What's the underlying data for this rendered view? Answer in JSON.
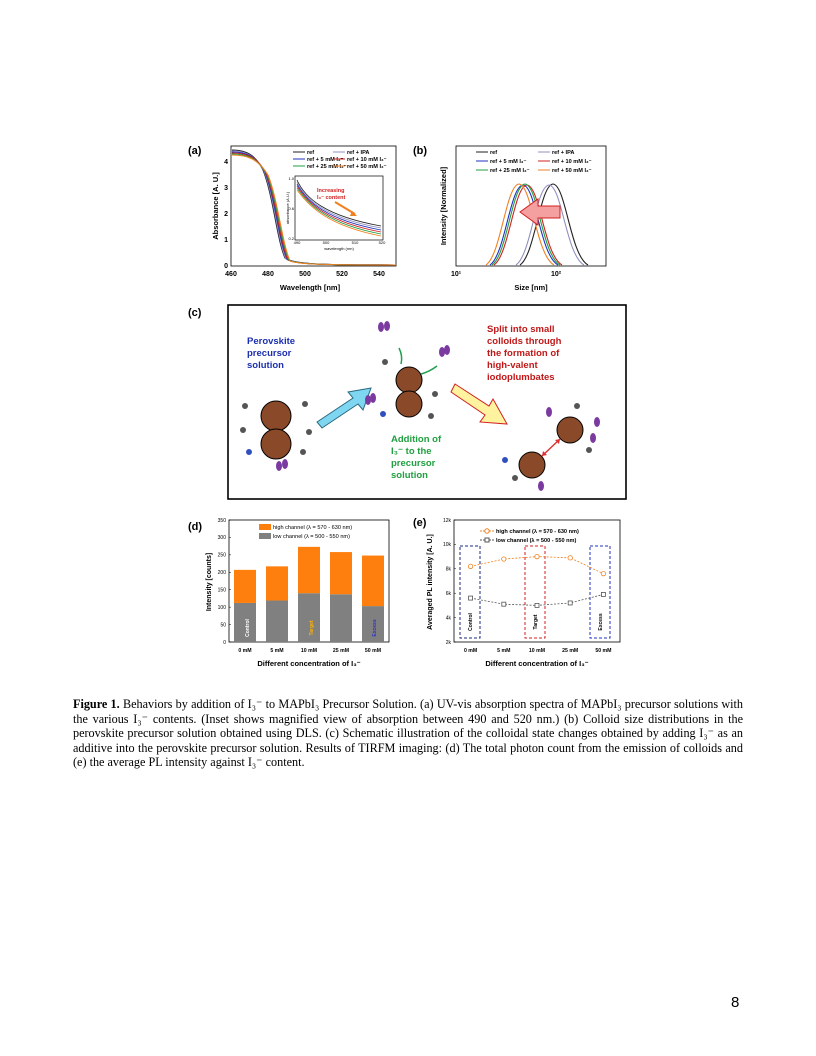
{
  "page_number": "8",
  "panel_a": {
    "label": "(a)",
    "xlabel": "Wavelength [nm]",
    "ylabel": "Absorbance [A. U.]",
    "xticks": [
      "460",
      "480",
      "500",
      "520",
      "540"
    ],
    "yticks": [
      "0",
      "1",
      "2",
      "3",
      "4"
    ],
    "legend": [
      "ref",
      "ref + IPA",
      "ref + 5 mM I₃⁻",
      "ref + 10 mM I₃⁻",
      "ref + 25 mM I₃⁻",
      "ref + 50 mM I₃⁻"
    ],
    "inset": {
      "annotation_line1": "Increasing",
      "annotation_line2": "I₃⁻ content",
      "xlabel": "wavelength (nm)",
      "ylabel": "absorbance (A.U.)",
      "xticks": [
        "490",
        "500",
        "510",
        "520"
      ],
      "yticks": [
        "0.6",
        "1.0",
        "0.2"
      ]
    }
  },
  "panel_b": {
    "label": "(b)",
    "xlabel": "Size [nm]",
    "ylabel": "Intensity [Normalized]",
    "xticks": [
      "10¹",
      "10²"
    ],
    "legend": [
      "ref",
      "ref + IPA",
      "ref + 5 mM I₃⁻",
      "ref + 10 mM I₃⁻",
      "ref + 25 mM I₃⁻",
      "ref + 50 mM I₃⁻"
    ]
  },
  "panel_c": {
    "label": "(c)",
    "text_precursor": [
      "Perovskite",
      "precursor",
      "solution"
    ],
    "text_addition": [
      "Addition of",
      "I₃⁻ to the",
      "precursor",
      "solution"
    ],
    "text_split": [
      "Split into small",
      "colloids through",
      "the formation of",
      "high-valent",
      "iodoplumbates"
    ]
  },
  "panel_d": {
    "label": "(d)",
    "ylabel": "Intensity [counts]",
    "xlabel": "Different concentration of I₃⁻",
    "yticks": [
      "0",
      "50",
      "100",
      "150",
      "200",
      "250",
      "300",
      "350"
    ],
    "legend": [
      "high channel (λ = 570 - 630 nm)",
      "low channel (λ = 500 - 550 nm)"
    ],
    "tags": [
      "Control",
      "Target",
      "Excess"
    ],
    "colors": {
      "high": "#ff7f0e",
      "low": "#808080",
      "target": "#ffb000",
      "excess": "#3030c0"
    }
  },
  "panel_e": {
    "label": "(e)",
    "ylabel": "Averaged PL intensity [A. U.]",
    "xlabel": "Different concentration of I₃⁻",
    "yticks": [
      "2k",
      "4k",
      "6k",
      "8k",
      "10k",
      "12k"
    ],
    "legend": [
      "high channel (λ = 570 - 630 nm)",
      "low channel (λ = 500 - 550 nm)"
    ],
    "tags": [
      "Control",
      "Target",
      "Excess"
    ]
  },
  "chart_data": [
    {
      "type": "bar",
      "panel": "d",
      "categories": [
        "0 mM",
        "5 mM",
        "10 mM",
        "25 mM",
        "50 mM"
      ],
      "series": [
        {
          "name": "high channel (λ = 570 - 630 nm)",
          "values": [
            95,
            98,
            133,
            121,
            145
          ]
        },
        {
          "name": "low channel (λ = 500 - 550 nm)",
          "values": [
            112,
            119,
            140,
            137,
            103
          ]
        }
      ],
      "stacked": true,
      "ylim": [
        0,
        350
      ],
      "xlabel": "Different concentration of I₃⁻",
      "ylabel": "Intensity [counts]"
    },
    {
      "type": "line",
      "panel": "e",
      "categories": [
        "0 mM",
        "5 mM",
        "10 mM",
        "25 mM",
        "50 mM"
      ],
      "series": [
        {
          "name": "high channel (λ = 570 - 630 nm)",
          "values": [
            8200,
            8800,
            9000,
            8900,
            7600
          ]
        },
        {
          "name": "low channel (λ = 500 - 550 nm)",
          "values": [
            5600,
            5100,
            5000,
            5200,
            5900
          ]
        }
      ],
      "ylim": [
        2000,
        12000
      ],
      "xlabel": "Different concentration of I₃⁻",
      "ylabel": "Averaged PL intensity [A. U.]"
    }
  ],
  "caption": {
    "figure_label": "Figure 1.",
    "text": " Behaviors by addition of I₃⁻ to MAPbI₃ Precursor Solution. (a) UV-vis absorption spectra of MAPbI₃ precursor solutions with the various I₃⁻ contents. (Inset shows magnified view of absorption between 490 and 520 nm.) (b) Colloid size distributions in the perovskite precursor solution obtained using DLS. (c) Schematic illustration of the colloidal state changes obtained by adding I₃⁻ as an additive into the perovskite precursor solution. Results of TIRFM imaging: (d) The total photon count from the emission of colloids and (e) the average PL intensity against I₃⁻ content."
  }
}
